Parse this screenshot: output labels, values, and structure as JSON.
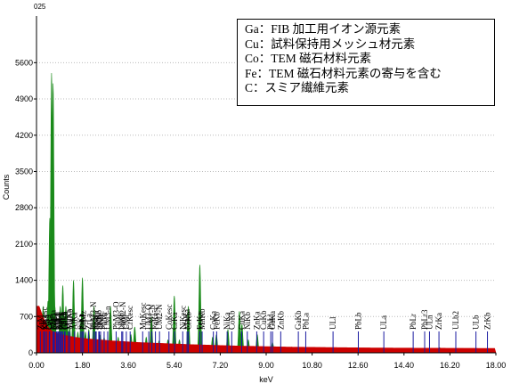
{
  "chart_data": {
    "type": "area",
    "title": "025",
    "xlabel": "keV",
    "ylabel": "Counts",
    "xlim": [
      0.0,
      18.0
    ],
    "ylim": [
      0,
      6500
    ],
    "x_ticks": [
      "0.00",
      "1.80",
      "3.60",
      "5.40",
      "7.20",
      "9.00",
      "10.80",
      "12.60",
      "14.40",
      "16.20",
      "18.00"
    ],
    "y_ticks": [
      "0",
      "700",
      "1400",
      "2100",
      "2800",
      "3500",
      "4200",
      "4900",
      "5600"
    ],
    "series": [
      {
        "color": "#1a8a1a",
        "x": [
          0.1,
          0.26,
          0.45,
          0.52,
          0.59,
          0.65,
          0.72,
          0.79,
          0.86,
          0.93,
          1.03,
          1.1,
          1.15,
          1.21,
          1.3,
          1.45,
          1.62,
          1.74,
          1.8,
          1.92,
          2.05,
          2.25,
          2.5,
          2.65,
          2.9,
          3.2,
          3.7,
          3.85,
          4.3,
          4.5,
          4.8,
          5.15,
          5.4,
          5.6,
          5.95,
          6.4,
          6.9,
          7.05,
          7.5,
          7.95,
          8.05,
          8.3,
          8.65,
          9.25,
          10.0,
          13.6,
          15.8
        ],
        "y": [
          600,
          900,
          1000,
          2600,
          5400,
          5200,
          900,
          300,
          250,
          900,
          1300,
          700,
          900,
          500,
          500,
          1400,
          400,
          600,
          1450,
          400,
          450,
          900,
          350,
          300,
          900,
          300,
          350,
          500,
          300,
          700,
          230,
          250,
          1100,
          250,
          900,
          1700,
          300,
          350,
          450,
          800,
          550,
          250,
          350,
          200,
          110,
          100,
          100
        ]
      },
      {
        "color": "#cc0000",
        "x": [
          0.1,
          0.25,
          0.45,
          0.6,
          0.9,
          1.2,
          1.5,
          2.0,
          3.0,
          4.0,
          6.0,
          8.0,
          10.0,
          13.0,
          15.0,
          18.0
        ],
        "y": [
          900,
          700,
          500,
          420,
          360,
          330,
          300,
          270,
          230,
          200,
          160,
          130,
          110,
          95,
          90,
          85
        ]
      }
    ],
    "peak_labels": [
      {
        "text": "GaLl",
        "x": 0.96
      },
      {
        "text": "CuLl",
        "x": 0.81
      },
      {
        "text": "GaLa",
        "x": 1.1
      },
      {
        "text": "CuLa",
        "x": 0.93
      },
      {
        "text": "NiLa",
        "x": 0.85
      },
      {
        "text": "GaLb",
        "x": 1.12
      },
      {
        "text": "ZrLesc",
        "x": 0.32
      },
      {
        "text": "OKa",
        "x": 0.52
      },
      {
        "text": "CoLl",
        "x": 0.68
      },
      {
        "text": "FeLa",
        "x": 0.7
      },
      {
        "text": "ZnLa",
        "x": 1.01
      },
      {
        "text": "ZnLb",
        "x": 1.03
      },
      {
        "text": "ZnLl",
        "x": 0.88
      },
      {
        "text": "ZrM",
        "x": 0.15
      },
      {
        "text": "MnLa",
        "x": 0.64
      },
      {
        "text": "CrLl",
        "x": 0.5
      },
      {
        "text": "CoLa",
        "x": 0.78
      },
      {
        "text": "NKa",
        "x": 0.39
      },
      {
        "text": "CKa",
        "x": 0.28
      },
      {
        "text": "MgKa",
        "x": 1.25
      },
      {
        "text": "AlKa",
        "x": 1.49
      },
      {
        "text": "SiKa",
        "x": 1.74
      },
      {
        "text": "ZrLl",
        "x": 1.79
      },
      {
        "text": "ZrLa",
        "x": 2.04
      },
      {
        "text": "PbMz",
        "x": 1.84
      },
      {
        "text": "PbM3-N",
        "x": 2.24
      },
      {
        "text": "PbMa",
        "x": 2.34
      },
      {
        "text": "PbMb",
        "x": 2.44
      },
      {
        "text": "UMz",
        "x": 2.51
      },
      {
        "text": "UM3-n",
        "x": 2.79
      },
      {
        "text": "UMb",
        "x": 3.34
      },
      {
        "text": "SKa",
        "x": 2.31
      },
      {
        "text": "SKb",
        "x": 2.46
      },
      {
        "text": "PbMr",
        "x": 2.65
      },
      {
        "text": "MgKb",
        "x": 1.3
      },
      {
        "text": "PbM3-O",
        "x": 3.12
      },
      {
        "text": "PbM2-N",
        "x": 3.38
      },
      {
        "text": "UMr",
        "x": 3.52
      },
      {
        "text": "CrKesc",
        "x": 3.67
      },
      {
        "text": "MnKesc",
        "x": 4.16
      },
      {
        "text": "UM3-O",
        "x": 4.4
      },
      {
        "text": "UM1-N",
        "x": 4.52
      },
      {
        "text": "UM2-N",
        "x": 4.82
      },
      {
        "text": "FeKesc",
        "x": 4.66
      },
      {
        "text": "CoKesc",
        "x": 5.19
      },
      {
        "text": "NiKesc",
        "x": 5.73
      },
      {
        "text": "CrKa",
        "x": 5.41
      },
      {
        "text": "MnKa",
        "x": 5.9
      },
      {
        "text": "CrKb",
        "x": 5.95
      },
      {
        "text": "FeKa",
        "x": 6.4
      },
      {
        "text": "MnKb",
        "x": 6.49
      },
      {
        "text": "CoKa",
        "x": 6.93
      },
      {
        "text": "FeKb",
        "x": 7.06
      },
      {
        "text": "NiKa",
        "x": 7.47
      },
      {
        "text": "CoKb",
        "x": 7.65
      },
      {
        "text": "CuKa",
        "x": 8.04
      },
      {
        "text": "NiKb",
        "x": 8.26
      },
      {
        "text": "ZnKa",
        "x": 8.63
      },
      {
        "text": "CuKb",
        "x": 8.9
      },
      {
        "text": "GaKa",
        "x": 9.25
      },
      {
        "text": "PbLl",
        "x": 9.18
      },
      {
        "text": "ZnKb",
        "x": 9.57
      },
      {
        "text": "GaKb",
        "x": 10.26
      },
      {
        "text": "PbLa",
        "x": 10.55
      },
      {
        "text": "ULl",
        "x": 11.62
      },
      {
        "text": "PbLb",
        "x": 12.61
      },
      {
        "text": "ULa",
        "x": 13.61
      },
      {
        "text": "PbLr",
        "x": 14.76
      },
      {
        "text": "PbLr3",
        "x": 15.21
      },
      {
        "text": "ULn",
        "x": 15.4
      },
      {
        "text": "ZrKa",
        "x": 15.77
      },
      {
        "text": "ULb2",
        "x": 16.43
      },
      {
        "text": "ULb",
        "x": 17.22
      },
      {
        "text": "ZrKb",
        "x": 17.67
      }
    ],
    "legend": [
      "Ga：FIB 加工用イオン源元素",
      "Cu：試料保持用メッシュ材元素",
      "Co：TEM 磁石材料元素",
      "Fe：TEM 磁石材料元素の寄与を含む",
      "C：スミア繊維元素"
    ],
    "colors": {
      "primary": "#1a8a1a",
      "secondary": "#cc0000",
      "marker": "#1a1aa0"
    }
  }
}
